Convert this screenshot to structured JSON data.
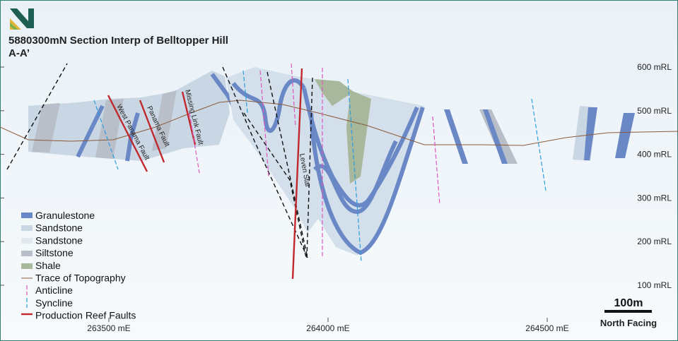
{
  "header": {
    "title": "5880300mN Section Interp of Belltopper Hill",
    "subtitle": "A-A’"
  },
  "elevation_labels": [
    "600 mRL",
    "500 mRL",
    "400 mRL",
    "300 mRL",
    "200 mRL",
    "100 mRL"
  ],
  "easting_labels": [
    "263500 mE",
    "264000 mE",
    "264500 mE"
  ],
  "fault_labels": [
    "West Panama Fault",
    "Panama Fault",
    "Missing Link Fault",
    "Leven Star"
  ],
  "legend": [
    "Granulestone",
    "Sandstone",
    "Sandstone",
    "Siltstone",
    "Shale",
    "Trace of Topography",
    "Anticline",
    "Syncline",
    "Production Reef Faults"
  ],
  "scale_bar": "100m",
  "orientation": "North Facing"
}
